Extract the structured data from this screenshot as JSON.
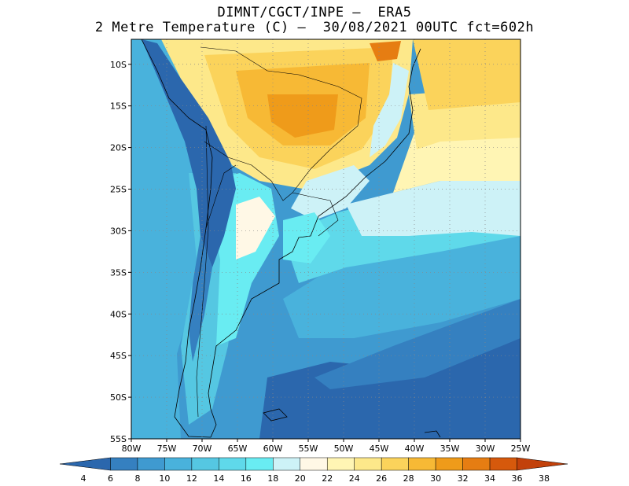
{
  "header": {
    "line1": "DIMNT/CGCT/INPE –  ERA5",
    "line2": "2 Metre Temperature (C) –  30/08/2021 00UTC fct=602h"
  },
  "map": {
    "lon_range": [
      -80,
      -25
    ],
    "lat_range": [
      -55,
      -7
    ],
    "lon_ticks": [
      "80W",
      "75W",
      "70W",
      "65W",
      "60W",
      "55W",
      "50W",
      "45W",
      "40W",
      "35W",
      "30W",
      "25W"
    ],
    "lat_ticks": [
      "10S",
      "15S",
      "20S",
      "25S",
      "30S",
      "35S",
      "40S",
      "45S",
      "50S",
      "55S"
    ],
    "gridlines": "dotted"
  },
  "colorbar": {
    "labels": [
      "4",
      "6",
      "8",
      "10",
      "12",
      "14",
      "16",
      "18",
      "20",
      "22",
      "24",
      "26",
      "28",
      "30",
      "32",
      "34",
      "36",
      "38"
    ],
    "colors": [
      "#2b67ad",
      "#3580c0",
      "#3f9ad0",
      "#49b2dc",
      "#55c7e2",
      "#5fd9ea",
      "#69ecf2",
      "#cdf2f7",
      "#fff8e6",
      "#fff5b4",
      "#fde88a",
      "#fbd35b",
      "#f7b935",
      "#ef9b1a",
      "#e67d12",
      "#d6590c",
      "#c2410a"
    ]
  }
}
